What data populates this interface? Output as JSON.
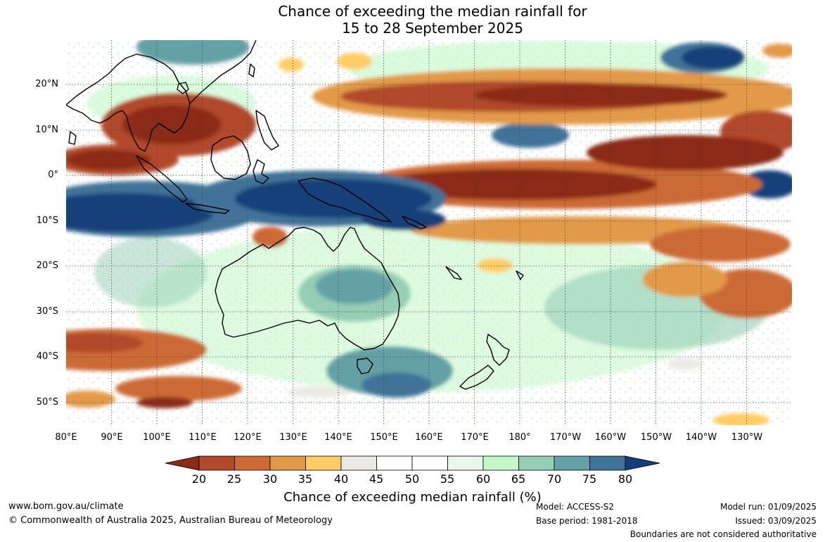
{
  "title": {
    "line1": "Chance of exceeding the median rainfall for",
    "line2": "15 to 28 September 2025"
  },
  "map": {
    "lat_labels": [
      "20°N",
      "10°N",
      "0°",
      "10°S",
      "20°S",
      "30°S",
      "40°S",
      "50°S"
    ],
    "lon_labels": [
      "80°E",
      "90°E",
      "100°E",
      "110°E",
      "120°E",
      "130°E",
      "140°E",
      "150°E",
      "160°E",
      "170°E",
      "180°",
      "170°W",
      "160°W",
      "150°W",
      "140°W",
      "130°W"
    ]
  },
  "colorbar": {
    "ticks": [
      "20",
      "25",
      "30",
      "35",
      "40",
      "45",
      "50",
      "55",
      "60",
      "65",
      "70",
      "75",
      "80"
    ],
    "title": "Chance of exceeding median rainfall (%)",
    "colors": [
      "#8b2a17",
      "#b1492a",
      "#cc6a35",
      "#e29a4a",
      "#ffcc66",
      "#ebe9e4",
      "#ffffff",
      "#ffffff",
      "#e8f7ea",
      "#c3f8c8",
      "#95cdb5",
      "#64a1a6",
      "#3f7397",
      "#123f7a"
    ]
  },
  "footer": {
    "website": "www.bom.gov.au/climate",
    "copyright": "© Commonwealth of Australia 2025, Australian Bureau of Meteorology",
    "model": "Model: ACCESS-S2",
    "base_period": "Base period: 1981-2018",
    "model_run": "Model run: 01/09/2025",
    "issued": "Issued: 03/09/2025",
    "disclaimer": "Boundaries are not considered authoritative"
  }
}
